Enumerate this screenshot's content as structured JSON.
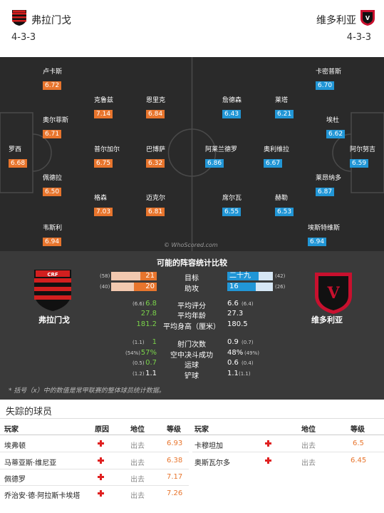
{
  "home": {
    "name": "弗拉门戈",
    "formation": "4-3-3"
  },
  "away": {
    "name": "维多利亚",
    "formation": "4-3-3"
  },
  "home_players": [
    {
      "name": "卢卡斯",
      "rating": "6.72"
    },
    {
      "name": "克鲁兹",
      "rating": "7.14"
    },
    {
      "name": "恩里克",
      "rating": "6.84"
    },
    {
      "name": "奥尔菲斯",
      "rating": "6.71"
    },
    {
      "name": "罗西",
      "rating": "6.68"
    },
    {
      "name": "普尔加尔",
      "rating": "6.75"
    },
    {
      "name": "巴博萨",
      "rating": "6.32"
    },
    {
      "name": "佩德拉",
      "rating": "6.50"
    },
    {
      "name": "格森",
      "rating": "7.03"
    },
    {
      "name": "迈克尔",
      "rating": "6.81"
    },
    {
      "name": "韦斯利",
      "rating": "6.94"
    }
  ],
  "away_players": [
    {
      "name": "詹德森",
      "rating": "6.43"
    },
    {
      "name": "莱塔",
      "rating": "6.21"
    },
    {
      "name": "卡密普斯",
      "rating": "6.70"
    },
    {
      "name": "埃杜",
      "rating": "6.62"
    },
    {
      "name": "阿莱兰德罗",
      "rating": "6.86"
    },
    {
      "name": "奥利维拉",
      "rating": "6.67"
    },
    {
      "name": "阿尔努吉",
      "rating": "6.59"
    },
    {
      "name": "席尔瓦",
      "rating": "6.55"
    },
    {
      "name": "赫勒",
      "rating": "6.53"
    },
    {
      "name": "莱昂纳多",
      "rating": "6.87"
    },
    {
      "name": "埃斯特维斯",
      "rating": "6.94"
    }
  ],
  "watermark": "© WhoScored.com",
  "comparison": {
    "title": "可能的阵容统计比较",
    "home_name": "弗拉门戈",
    "away_name": "维多利亚",
    "goals": {
      "label": "目标",
      "home_val": "21",
      "home_total": "(58)",
      "away_val": "二十九",
      "away_total": "(42)",
      "home_frac": 0.36,
      "away_frac": 0.69
    },
    "assists": {
      "label": "助攻",
      "home_val": "20",
      "home_total": "(40)",
      "away_val": "16",
      "away_total": "(26)",
      "home_frac": 0.5,
      "away_frac": 0.62
    },
    "rating": {
      "label": "平均评分",
      "home_sub": "(6.6)",
      "home": "6.8",
      "away": "6.6",
      "away_sub": "(6.4)"
    },
    "age": {
      "label": "平均年龄",
      "home": "27.8",
      "away": "27.3"
    },
    "height": {
      "label": "平均身高（厘米）",
      "home": "181.2",
      "away": "180.5"
    },
    "shots": {
      "label": "射门次数",
      "home_sub": "(1.1)",
      "home": "1",
      "away": "0.9",
      "away_sub": "(0.7)"
    },
    "aerial": {
      "label": "空中决斗成功",
      "home_sub": "(54%)",
      "home": "57%",
      "away": "48%",
      "away_sub": "(49%)"
    },
    "dribble": {
      "label": "运球",
      "home_sub": "(0.5)",
      "home": "0.7",
      "away": "0.6",
      "away_sub": "(0.4)"
    },
    "tackle": {
      "label": "铲球",
      "home_sub": "(1.2)",
      "home": "1.1",
      "away": "1.1",
      "away_sub": "(1.1)"
    },
    "note": "* 括号（x）中的数值是常甲联赛的整体球员统计数据。"
  },
  "missing": {
    "title": "失踪的球员",
    "headers": {
      "player": "玩家",
      "reason": "原因",
      "status": "地位",
      "rating": "等级"
    },
    "home": [
      {
        "player": "埃弗顿",
        "status": "出去",
        "rating": "6.93"
      },
      {
        "player": "马蒂亚斯·维尼亚",
        "status": "出去",
        "rating": "6.38"
      },
      {
        "player": "佩德罗",
        "status": "出去",
        "rating": "7.17"
      },
      {
        "player": "乔治安·德·阿拉斯卡埃塔",
        "status": "出去",
        "rating": "7.26"
      }
    ],
    "away": [
      {
        "player": "卡穆坦加",
        "status": "出去",
        "rating": "6.5"
      },
      {
        "player": "奥斯瓦尔多",
        "status": "出去",
        "rating": "6.45"
      }
    ]
  },
  "colors": {
    "home_accent": "#e8752d",
    "away_accent": "#2196d6",
    "positive": "#7ad34a"
  }
}
